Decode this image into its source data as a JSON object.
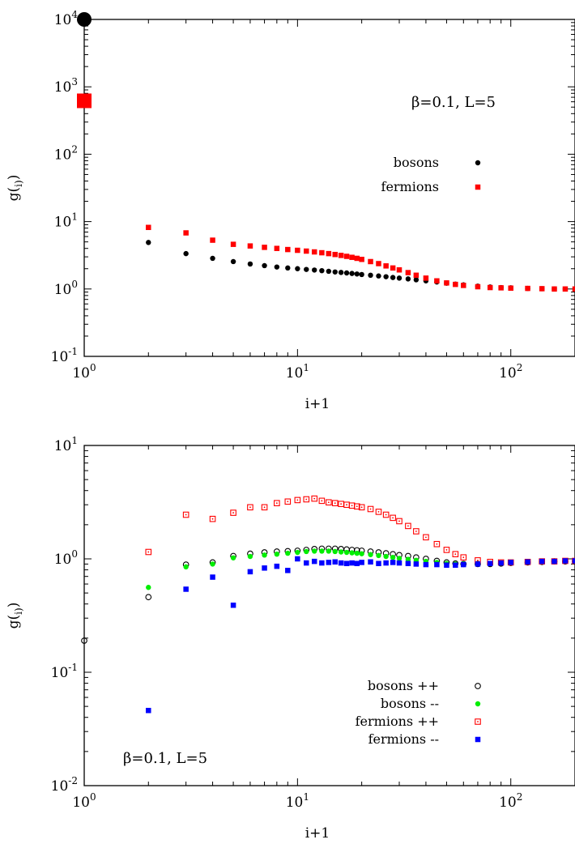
{
  "chart_data": [
    {
      "type": "scatter",
      "xscale": "log",
      "yscale": "log",
      "xlim": [
        1,
        200
      ],
      "ylim": [
        0.1,
        10000
      ],
      "xlabel": "i+1",
      "ylabel": "g(r_i)",
      "x_ticks": [
        {
          "value": 1,
          "base": "10",
          "exp": "0"
        },
        {
          "value": 10,
          "base": "10",
          "exp": "1"
        },
        {
          "value": 100,
          "base": "10",
          "exp": "2"
        }
      ],
      "y_ticks": [
        {
          "value": 0.1,
          "base": "10",
          "exp": "-1"
        },
        {
          "value": 1,
          "base": "10",
          "exp": "0"
        },
        {
          "value": 10,
          "base": "10",
          "exp": "1"
        },
        {
          "value": 100,
          "base": "10",
          "exp": "2"
        },
        {
          "value": 1000,
          "base": "10",
          "exp": "3"
        },
        {
          "value": 10000,
          "base": "10",
          "exp": "4"
        }
      ],
      "annotation": "β=0.1, L=5",
      "legend_position": "right",
      "grid": false,
      "series": [
        {
          "name": "bosons",
          "marker": "dot",
          "color": "#000000",
          "points": [
            [
              1,
              10000
            ],
            [
              2,
              4.9
            ],
            [
              3,
              3.35
            ],
            [
              4,
              2.85
            ],
            [
              5,
              2.55
            ],
            [
              6,
              2.35
            ],
            [
              7,
              2.22
            ],
            [
              8,
              2.12
            ],
            [
              9,
              2.05
            ],
            [
              10,
              2.0
            ],
            [
              11,
              1.95
            ],
            [
              12,
              1.91
            ],
            [
              13,
              1.87
            ],
            [
              14,
              1.83
            ],
            [
              15,
              1.79
            ],
            [
              16,
              1.76
            ],
            [
              17,
              1.73
            ],
            [
              18,
              1.7
            ],
            [
              19,
              1.67
            ],
            [
              20,
              1.64
            ],
            [
              22,
              1.6
            ],
            [
              24,
              1.56
            ],
            [
              26,
              1.52
            ],
            [
              28,
              1.48
            ],
            [
              30,
              1.45
            ],
            [
              33,
              1.41
            ],
            [
              36,
              1.37
            ],
            [
              40,
              1.32
            ],
            [
              45,
              1.27
            ],
            [
              50,
              1.22
            ],
            [
              55,
              1.18
            ],
            [
              60,
              1.15
            ],
            [
              70,
              1.1
            ],
            [
              80,
              1.07
            ],
            [
              90,
              1.05
            ],
            [
              100,
              1.04
            ],
            [
              120,
              1.02
            ],
            [
              140,
              1.01
            ],
            [
              160,
              1.0
            ],
            [
              180,
              1.0
            ],
            [
              200,
              1.0
            ]
          ]
        },
        {
          "name": "fermions",
          "marker": "square",
          "color": "#ff0000",
          "points": [
            [
              1,
              620
            ],
            [
              2,
              8.2
            ],
            [
              3,
              6.8
            ],
            [
              4,
              5.3
            ],
            [
              5,
              4.6
            ],
            [
              6,
              4.35
            ],
            [
              7,
              4.15
            ],
            [
              8,
              4.0
            ],
            [
              9,
              3.85
            ],
            [
              10,
              3.75
            ],
            [
              11,
              3.65
            ],
            [
              12,
              3.55
            ],
            [
              13,
              3.45
            ],
            [
              14,
              3.35
            ],
            [
              15,
              3.25
            ],
            [
              16,
              3.15
            ],
            [
              17,
              3.05
            ],
            [
              18,
              2.95
            ],
            [
              19,
              2.85
            ],
            [
              20,
              2.75
            ],
            [
              22,
              2.55
            ],
            [
              24,
              2.38
            ],
            [
              26,
              2.2
            ],
            [
              28,
              2.05
            ],
            [
              30,
              1.92
            ],
            [
              33,
              1.75
            ],
            [
              36,
              1.6
            ],
            [
              40,
              1.45
            ],
            [
              45,
              1.32
            ],
            [
              50,
              1.23
            ],
            [
              55,
              1.17
            ],
            [
              60,
              1.13
            ],
            [
              70,
              1.08
            ],
            [
              80,
              1.05
            ],
            [
              90,
              1.04
            ],
            [
              100,
              1.03
            ],
            [
              120,
              1.02
            ],
            [
              140,
              1.01
            ],
            [
              160,
              1.0
            ],
            [
              180,
              1.0
            ],
            [
              200,
              1.0
            ]
          ]
        }
      ]
    },
    {
      "type": "scatter",
      "xscale": "log",
      "yscale": "log",
      "xlim": [
        1,
        200
      ],
      "ylim": [
        0.01,
        10
      ],
      "xlabel": "i+1",
      "ylabel": "g(r_i)",
      "x_ticks": [
        {
          "value": 1,
          "base": "10",
          "exp": "0"
        },
        {
          "value": 10,
          "base": "10",
          "exp": "1"
        },
        {
          "value": 100,
          "base": "10",
          "exp": "2"
        }
      ],
      "y_ticks": [
        {
          "value": 0.01,
          "base": "10",
          "exp": "-2"
        },
        {
          "value": 0.1,
          "base": "10",
          "exp": "-1"
        },
        {
          "value": 1,
          "base": "10",
          "exp": "0"
        },
        {
          "value": 10,
          "base": "10",
          "exp": "1"
        }
      ],
      "annotation": "β=0.1, L=5",
      "legend_position": "bottom-right",
      "grid": false,
      "series": [
        {
          "name": "bosons ++",
          "marker": "open-circle",
          "color": "#000000",
          "points": [
            [
              1,
              0.19
            ],
            [
              2,
              0.46
            ],
            [
              3,
              0.89
            ],
            [
              4,
              0.93
            ],
            [
              5,
              1.06
            ],
            [
              6,
              1.11
            ],
            [
              7,
              1.14
            ],
            [
              8,
              1.16
            ],
            [
              9,
              1.17
            ],
            [
              10,
              1.18
            ],
            [
              11,
              1.2
            ],
            [
              12,
              1.22
            ],
            [
              13,
              1.23
            ],
            [
              14,
              1.23
            ],
            [
              15,
              1.23
            ],
            [
              16,
              1.22
            ],
            [
              17,
              1.21
            ],
            [
              18,
              1.2
            ],
            [
              19,
              1.19
            ],
            [
              20,
              1.18
            ],
            [
              22,
              1.16
            ],
            [
              24,
              1.14
            ],
            [
              26,
              1.12
            ],
            [
              28,
              1.1
            ],
            [
              30,
              1.08
            ],
            [
              33,
              1.06
            ],
            [
              36,
              1.03
            ],
            [
              40,
              1.0
            ],
            [
              45,
              0.96
            ],
            [
              50,
              0.93
            ],
            [
              55,
              0.91
            ],
            [
              60,
              0.9
            ],
            [
              70,
              0.9
            ],
            [
              80,
              0.9
            ],
            [
              90,
              0.91
            ],
            [
              100,
              0.92
            ],
            [
              120,
              0.93
            ],
            [
              140,
              0.94
            ],
            [
              160,
              0.95
            ],
            [
              180,
              0.95
            ],
            [
              200,
              0.95
            ]
          ]
        },
        {
          "name": "bosons --",
          "marker": "dot",
          "color": "#00ee00",
          "points": [
            [
              2,
              0.56
            ],
            [
              3,
              0.85
            ],
            [
              4,
              0.9
            ],
            [
              5,
              1.02
            ],
            [
              6,
              1.05
            ],
            [
              7,
              1.08
            ],
            [
              8,
              1.1
            ],
            [
              9,
              1.12
            ],
            [
              10,
              1.14
            ],
            [
              11,
              1.16
            ],
            [
              12,
              1.17
            ],
            [
              13,
              1.17
            ],
            [
              14,
              1.17
            ],
            [
              15,
              1.16
            ],
            [
              16,
              1.15
            ],
            [
              17,
              1.14
            ],
            [
              18,
              1.13
            ],
            [
              19,
              1.12
            ],
            [
              20,
              1.11
            ],
            [
              22,
              1.09
            ],
            [
              24,
              1.07
            ],
            [
              26,
              1.05
            ],
            [
              28,
              1.03
            ],
            [
              30,
              1.01
            ],
            [
              33,
              0.99
            ],
            [
              36,
              0.97
            ],
            [
              40,
              0.95
            ],
            [
              45,
              0.93
            ],
            [
              50,
              0.91
            ],
            [
              55,
              0.9
            ],
            [
              60,
              0.9
            ],
            [
              70,
              0.9
            ],
            [
              80,
              0.91
            ],
            [
              90,
              0.92
            ],
            [
              100,
              0.93
            ],
            [
              120,
              0.94
            ],
            [
              140,
              0.95
            ],
            [
              160,
              0.95
            ],
            [
              180,
              0.96
            ],
            [
              200,
              0.96
            ]
          ]
        },
        {
          "name": "fermions ++",
          "marker": "open-square",
          "color": "#ff0000",
          "points": [
            [
              2,
              1.15
            ],
            [
              3,
              2.45
            ],
            [
              4,
              2.25
            ],
            [
              5,
              2.55
            ],
            [
              6,
              2.85
            ],
            [
              7,
              2.85
            ],
            [
              8,
              3.1
            ],
            [
              9,
              3.2
            ],
            [
              10,
              3.3
            ],
            [
              11,
              3.35
            ],
            [
              12,
              3.4
            ],
            [
              13,
              3.25
            ],
            [
              14,
              3.15
            ],
            [
              15,
              3.1
            ],
            [
              16,
              3.05
            ],
            [
              17,
              3.0
            ],
            [
              18,
              2.95
            ],
            [
              19,
              2.9
            ],
            [
              20,
              2.85
            ],
            [
              22,
              2.75
            ],
            [
              24,
              2.6
            ],
            [
              26,
              2.45
            ],
            [
              28,
              2.3
            ],
            [
              30,
              2.15
            ],
            [
              33,
              1.95
            ],
            [
              36,
              1.75
            ],
            [
              40,
              1.55
            ],
            [
              45,
              1.35
            ],
            [
              50,
              1.2
            ],
            [
              55,
              1.1
            ],
            [
              60,
              1.03
            ],
            [
              70,
              0.97
            ],
            [
              80,
              0.94
            ],
            [
              90,
              0.93
            ],
            [
              100,
              0.93
            ],
            [
              120,
              0.94
            ],
            [
              140,
              0.95
            ],
            [
              160,
              0.95
            ],
            [
              180,
              0.96
            ],
            [
              200,
              0.96
            ]
          ]
        },
        {
          "name": "fermions --",
          "marker": "square",
          "color": "#0000ff",
          "points": [
            [
              2,
              0.046
            ],
            [
              3,
              0.54
            ],
            [
              4,
              0.69
            ],
            [
              5,
              0.39
            ],
            [
              6,
              0.77
            ],
            [
              7,
              0.83
            ],
            [
              8,
              0.86
            ],
            [
              9,
              0.79
            ],
            [
              10,
              1.0
            ],
            [
              11,
              0.92
            ],
            [
              12,
              0.95
            ],
            [
              13,
              0.92
            ],
            [
              14,
              0.93
            ],
            [
              15,
              0.94
            ],
            [
              16,
              0.92
            ],
            [
              17,
              0.91
            ],
            [
              18,
              0.92
            ],
            [
              19,
              0.91
            ],
            [
              20,
              0.93
            ],
            [
              22,
              0.94
            ],
            [
              24,
              0.91
            ],
            [
              26,
              0.92
            ],
            [
              28,
              0.93
            ],
            [
              30,
              0.92
            ],
            [
              33,
              0.91
            ],
            [
              36,
              0.9
            ],
            [
              40,
              0.89
            ],
            [
              45,
              0.89
            ],
            [
              50,
              0.88
            ],
            [
              55,
              0.88
            ],
            [
              60,
              0.89
            ],
            [
              70,
              0.9
            ],
            [
              80,
              0.91
            ],
            [
              90,
              0.92
            ],
            [
              100,
              0.93
            ],
            [
              120,
              0.94
            ],
            [
              140,
              0.95
            ],
            [
              160,
              0.95
            ],
            [
              180,
              0.96
            ],
            [
              200,
              0.96
            ]
          ]
        }
      ]
    }
  ]
}
